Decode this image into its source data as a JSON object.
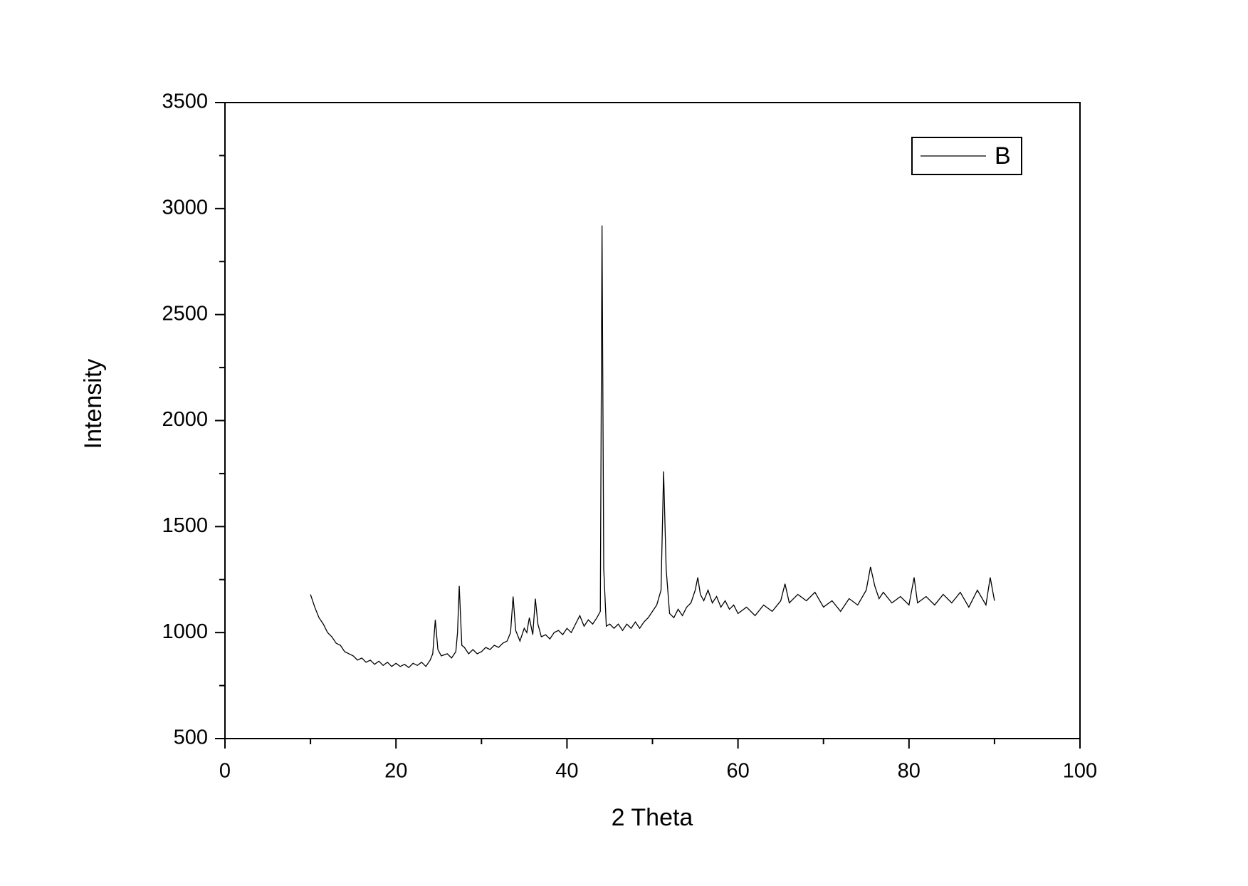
{
  "chart_data": {
    "type": "line",
    "x_label": "2 Theta",
    "y_label": "Intensity",
    "x": [
      10,
      10.5,
      11,
      11.5,
      12,
      12.5,
      13,
      13.5,
      14,
      14.5,
      15,
      15.5,
      16,
      16.5,
      17,
      17.5,
      18,
      18.5,
      19,
      19.5,
      20,
      20.5,
      21,
      21.5,
      22,
      22.5,
      23,
      23.5,
      24,
      24.3,
      24.6,
      24.9,
      25.3,
      26,
      26.5,
      27,
      27.2,
      27.4,
      27.7,
      28,
      28.5,
      29,
      29.5,
      30,
      30.5,
      31,
      31.5,
      32,
      32.5,
      33,
      33.4,
      33.7,
      34,
      34.5,
      35,
      35.3,
      35.6,
      36,
      36.3,
      36.6,
      37,
      37.5,
      38,
      38.5,
      39,
      39.5,
      40,
      40.5,
      41,
      41.5,
      42,
      42.5,
      43,
      43.5,
      43.9,
      44.1,
      44.3,
      44.6,
      45,
      45.5,
      46,
      46.5,
      47,
      47.5,
      48,
      48.5,
      49,
      49.5,
      50,
      50.5,
      51,
      51.3,
      51.6,
      52,
      52.5,
      53,
      53.5,
      54,
      54.5,
      55,
      55.3,
      55.6,
      56,
      56.5,
      57,
      57.5,
      58,
      58.5,
      59,
      59.5,
      60,
      61,
      62,
      63,
      64,
      65,
      65.5,
      66,
      67,
      68,
      69,
      70,
      71,
      72,
      73,
      74,
      75,
      75.5,
      76,
      76.5,
      77,
      78,
      79,
      80,
      80.6,
      81,
      82,
      83,
      84,
      85,
      86,
      87,
      88,
      89,
      89.5,
      90
    ],
    "series": [
      {
        "name": "B",
        "color": "#000000",
        "values": [
          1180,
          1120,
          1070,
          1040,
          1000,
          980,
          950,
          940,
          910,
          900,
          890,
          870,
          880,
          860,
          870,
          850,
          865,
          845,
          860,
          840,
          855,
          840,
          850,
          835,
          855,
          845,
          860,
          840,
          870,
          900,
          1060,
          920,
          890,
          900,
          880,
          910,
          1000,
          1220,
          940,
          930,
          900,
          920,
          900,
          910,
          930,
          920,
          940,
          930,
          950,
          960,
          1000,
          1170,
          1010,
          960,
          1020,
          1000,
          1070,
          990,
          1160,
          1040,
          980,
          990,
          970,
          1000,
          1010,
          990,
          1020,
          1000,
          1040,
          1080,
          1030,
          1060,
          1040,
          1070,
          1100,
          2920,
          1300,
          1030,
          1040,
          1020,
          1040,
          1010,
          1040,
          1020,
          1050,
          1020,
          1050,
          1070,
          1100,
          1130,
          1200,
          1760,
          1300,
          1090,
          1070,
          1110,
          1080,
          1120,
          1140,
          1200,
          1260,
          1180,
          1150,
          1200,
          1140,
          1170,
          1120,
          1150,
          1110,
          1130,
          1090,
          1120,
          1080,
          1130,
          1100,
          1150,
          1230,
          1140,
          1180,
          1150,
          1190,
          1120,
          1150,
          1100,
          1160,
          1130,
          1200,
          1310,
          1220,
          1160,
          1190,
          1140,
          1170,
          1130,
          1260,
          1140,
          1170,
          1130,
          1180,
          1140,
          1190,
          1120,
          1200,
          1130,
          1260,
          1150
        ]
      }
    ],
    "xlim": [
      0,
      100
    ],
    "xticks": [
      0,
      20,
      40,
      60,
      80,
      100
    ],
    "xminorticks": [
      10,
      30,
      50,
      70,
      90
    ],
    "ylim": [
      500,
      3500
    ],
    "yticks": [
      500,
      1000,
      1500,
      2000,
      2500,
      3000,
      3500
    ],
    "yminorticks": [
      750,
      1250,
      1750,
      2250,
      2750,
      3250
    ],
    "legend": "upper right"
  }
}
